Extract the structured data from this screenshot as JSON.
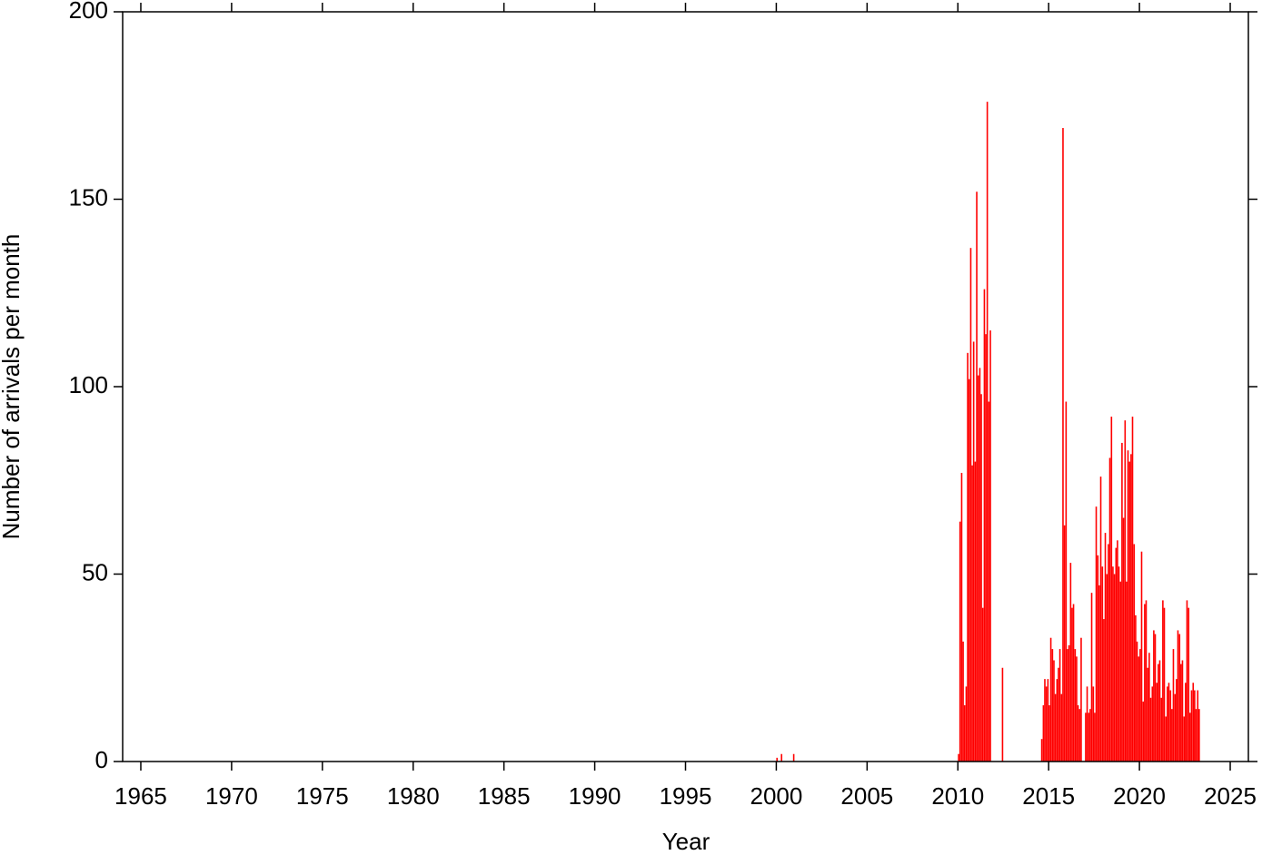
{
  "chart_data": {
    "type": "bar",
    "x_label": "Year",
    "y_label": "Number of arrivals per month",
    "color": "#ff0000",
    "xlim": [
      1964,
      2026
    ],
    "xticks": [
      1965,
      1970,
      1975,
      1980,
      1985,
      1990,
      1995,
      2000,
      2005,
      2010,
      2015,
      2020,
      2025
    ],
    "ylim": [
      0,
      200
    ],
    "yticks": [
      0,
      50,
      100,
      150,
      200
    ],
    "x": [
      2000.0,
      2000.25,
      2000.92,
      2010.0,
      2010.08,
      2010.17,
      2010.25,
      2010.33,
      2010.42,
      2010.5,
      2010.58,
      2010.67,
      2010.75,
      2010.83,
      2010.92,
      2011.0,
      2011.08,
      2011.17,
      2011.25,
      2011.33,
      2011.42,
      2011.5,
      2011.58,
      2011.67,
      2011.75,
      2012.42,
      2014.58,
      2014.67,
      2014.75,
      2014.83,
      2014.92,
      2015.0,
      2015.08,
      2015.17,
      2015.25,
      2015.33,
      2015.42,
      2015.5,
      2015.58,
      2015.67,
      2015.75,
      2015.83,
      2015.92,
      2016.0,
      2016.08,
      2016.17,
      2016.25,
      2016.33,
      2016.42,
      2016.5,
      2016.58,
      2016.67,
      2016.75,
      2017.0,
      2017.08,
      2017.17,
      2017.25,
      2017.33,
      2017.42,
      2017.5,
      2017.58,
      2017.67,
      2017.75,
      2017.83,
      2017.92,
      2018.0,
      2018.08,
      2018.17,
      2018.25,
      2018.33,
      2018.42,
      2018.5,
      2018.58,
      2018.67,
      2018.75,
      2018.83,
      2018.92,
      2019.0,
      2019.08,
      2019.17,
      2019.25,
      2019.33,
      2019.42,
      2019.5,
      2019.58,
      2019.67,
      2019.75,
      2019.83,
      2019.92,
      2020.0,
      2020.08,
      2020.17,
      2020.25,
      2020.33,
      2020.42,
      2020.5,
      2020.58,
      2020.67,
      2020.75,
      2020.83,
      2020.92,
      2021.0,
      2021.08,
      2021.17,
      2021.25,
      2021.33,
      2021.42,
      2021.5,
      2021.58,
      2021.67,
      2021.75,
      2021.83,
      2021.92,
      2022.0,
      2022.08,
      2022.17,
      2022.25,
      2022.33,
      2022.42,
      2022.5,
      2022.58,
      2022.67,
      2022.75,
      2022.83,
      2022.92,
      2023.0,
      2023.08,
      2023.17,
      2023.25
    ],
    "values": [
      1,
      2,
      2,
      2,
      64,
      77,
      32,
      15,
      20,
      109,
      102,
      137,
      79,
      112,
      80,
      152,
      103,
      105,
      98,
      41,
      126,
      114,
      176,
      96,
      115,
      25,
      6,
      15,
      22,
      20,
      22,
      15,
      33,
      30,
      27,
      18,
      22,
      25,
      30,
      18,
      169,
      63,
      96,
      30,
      31,
      53,
      41,
      42,
      30,
      28,
      15,
      14,
      33,
      13,
      20,
      13,
      14,
      45,
      20,
      13,
      68,
      55,
      47,
      76,
      52,
      38,
      61,
      50,
      58,
      81,
      92,
      52,
      50,
      57,
      59,
      52,
      48,
      85,
      65,
      91,
      48,
      83,
      80,
      82,
      92,
      58,
      39,
      32,
      28,
      30,
      56,
      16,
      42,
      43,
      25,
      29,
      17,
      20,
      35,
      34,
      21,
      26,
      27,
      17,
      43,
      41,
      12,
      20,
      21,
      19,
      14,
      30,
      18,
      22,
      35,
      34,
      26,
      27,
      12,
      21,
      43,
      41,
      13,
      19,
      21,
      19,
      14,
      19,
      14
    ]
  }
}
